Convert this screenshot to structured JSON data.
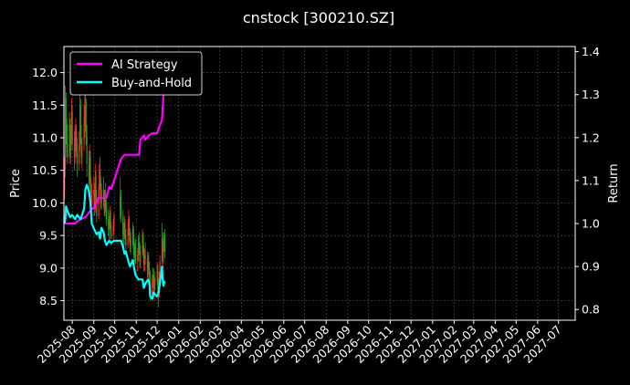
{
  "chart_data": {
    "type": "line",
    "title": "cnstock [300210.SZ]",
    "xlabel": "",
    "ylabel": "Price",
    "ylabel_right": "Return",
    "x_range": [
      "2025-07-20",
      "2027-07-25"
    ],
    "ylim_left": [
      8.2,
      12.4
    ],
    "ylim_right": [
      0.775,
      1.412
    ],
    "x_ticks": [
      "2025-08",
      "2025-09",
      "2025-10",
      "2025-11",
      "2025-12",
      "2026-01",
      "2026-02",
      "2026-03",
      "2026-04",
      "2026-05",
      "2026-06",
      "2026-07",
      "2026-08",
      "2026-09",
      "2026-10",
      "2026-11",
      "2026-12",
      "2027-01",
      "2027-02",
      "2027-03",
      "2027-04",
      "2027-05",
      "2027-06",
      "2027-07"
    ],
    "y_ticks_left": [
      "8.5",
      "9.0",
      "9.5",
      "10.0",
      "10.5",
      "11.0",
      "11.5",
      "12.0"
    ],
    "y_ticks_right": [
      "0.8",
      "0.9",
      "1.0",
      "1.1",
      "1.2",
      "1.3",
      "1.4"
    ],
    "grid": true,
    "legend_position": "top-left",
    "candle_up_color": "#ff2a2a",
    "candle_down_color": "#1fa81f",
    "candles": [
      [
        "2025-07-21",
        10.2,
        10.7,
        10.05,
        10.5
      ],
      [
        "2025-07-22",
        10.5,
        11.8,
        10.4,
        11.6
      ],
      [
        "2025-07-23",
        11.6,
        11.7,
        10.9,
        11.0
      ],
      [
        "2025-07-24",
        11.0,
        11.3,
        10.7,
        10.9
      ],
      [
        "2025-07-25",
        10.9,
        11.2,
        10.6,
        10.7
      ],
      [
        "2025-07-28",
        10.7,
        11.4,
        10.6,
        11.2
      ],
      [
        "2025-07-29",
        11.2,
        11.3,
        10.7,
        10.8
      ],
      [
        "2025-07-30",
        10.8,
        11.2,
        10.6,
        11.0
      ],
      [
        "2025-07-31",
        11.0,
        11.6,
        10.9,
        11.4
      ],
      [
        "2025-08-01",
        11.4,
        11.5,
        10.8,
        10.9
      ],
      [
        "2025-08-04",
        10.9,
        11.1,
        10.5,
        10.7
      ],
      [
        "2025-08-05",
        10.7,
        11.2,
        10.6,
        11.0
      ],
      [
        "2025-08-06",
        11.0,
        11.3,
        10.8,
        11.1
      ],
      [
        "2025-08-07",
        11.1,
        11.2,
        10.7,
        10.8
      ],
      [
        "2025-08-08",
        10.8,
        11.0,
        10.4,
        10.6
      ],
      [
        "2025-08-11",
        10.6,
        11.1,
        10.5,
        10.9
      ],
      [
        "2025-08-12",
        10.9,
        11.8,
        10.8,
        11.5
      ],
      [
        "2025-08-13",
        11.5,
        11.6,
        10.9,
        11.0
      ],
      [
        "2025-08-14",
        11.0,
        11.2,
        10.6,
        10.7
      ],
      [
        "2025-08-15",
        10.7,
        11.0,
        10.5,
        10.9
      ],
      [
        "2025-08-18",
        10.9,
        11.5,
        10.8,
        11.3
      ],
      [
        "2025-08-19",
        11.3,
        11.7,
        11.0,
        11.5
      ],
      [
        "2025-08-20",
        11.5,
        11.8,
        11.1,
        11.2
      ],
      [
        "2025-08-21",
        11.2,
        11.6,
        10.9,
        11.0
      ],
      [
        "2025-08-22",
        11.0,
        11.2,
        10.4,
        10.6
      ],
      [
        "2025-08-25",
        10.6,
        10.8,
        10.2,
        10.4
      ],
      [
        "2025-08-26",
        10.4,
        10.9,
        10.3,
        10.7
      ],
      [
        "2025-08-27",
        10.7,
        10.8,
        10.0,
        10.2
      ],
      [
        "2025-08-28",
        10.2,
        10.4,
        9.8,
        10.0
      ],
      [
        "2025-08-29",
        10.0,
        10.3,
        9.85,
        10.1
      ],
      [
        "2025-09-01",
        10.1,
        10.4,
        9.9,
        10.2
      ],
      [
        "2025-09-02",
        10.2,
        10.3,
        9.8,
        9.9
      ],
      [
        "2025-09-03",
        9.9,
        10.6,
        9.85,
        10.4
      ],
      [
        "2025-09-04",
        10.4,
        10.5,
        10.0,
        10.1
      ],
      [
        "2025-09-05",
        10.1,
        10.2,
        9.7,
        9.8
      ],
      [
        "2025-09-08",
        9.8,
        10.3,
        9.75,
        10.2
      ],
      [
        "2025-09-09",
        10.2,
        10.6,
        10.1,
        10.5
      ],
      [
        "2025-09-10",
        10.5,
        10.7,
        10.2,
        10.3
      ],
      [
        "2025-09-11",
        10.3,
        10.4,
        9.9,
        10.0
      ],
      [
        "2025-09-12",
        10.0,
        10.3,
        9.9,
        10.2
      ],
      [
        "2025-09-15",
        10.2,
        10.4,
        9.95,
        10.1
      ],
      [
        "2025-09-16",
        10.1,
        10.2,
        9.8,
        9.9
      ],
      [
        "2025-09-17",
        9.9,
        10.2,
        9.8,
        10.1
      ],
      [
        "2025-09-18",
        10.1,
        10.3,
        9.85,
        9.95
      ],
      [
        "2025-09-19",
        9.95,
        10.05,
        9.65,
        9.75
      ],
      [
        "2025-09-22",
        9.75,
        9.9,
        9.5,
        9.6
      ],
      [
        "2025-09-23",
        9.6,
        9.8,
        9.4,
        9.7
      ],
      [
        "2025-09-24",
        9.7,
        9.95,
        9.6,
        9.85
      ],
      [
        "2025-09-25",
        9.85,
        9.9,
        9.45,
        9.55
      ],
      [
        "2025-09-26",
        9.55,
        9.7,
        9.35,
        9.5
      ],
      [
        "2025-09-29",
        9.5,
        9.75,
        9.4,
        9.65
      ],
      [
        "2025-09-30",
        9.65,
        9.85,
        9.55,
        9.8
      ],
      [
        "2025-10-09",
        9.8,
        10.4,
        9.75,
        10.1
      ],
      [
        "2025-10-10",
        10.1,
        10.2,
        9.7,
        9.8
      ],
      [
        "2025-10-13",
        9.8,
        9.9,
        9.4,
        9.5
      ],
      [
        "2025-10-14",
        9.5,
        9.7,
        9.3,
        9.6
      ],
      [
        "2025-10-15",
        9.6,
        9.8,
        9.45,
        9.7
      ],
      [
        "2025-10-16",
        9.7,
        9.75,
        9.35,
        9.45
      ],
      [
        "2025-10-17",
        9.45,
        9.6,
        9.25,
        9.35
      ],
      [
        "2025-10-20",
        9.35,
        9.7,
        9.3,
        9.6
      ],
      [
        "2025-10-21",
        9.6,
        9.9,
        9.5,
        9.75
      ],
      [
        "2025-10-22",
        9.75,
        9.8,
        9.4,
        9.5
      ],
      [
        "2025-10-23",
        9.5,
        9.6,
        9.25,
        9.35
      ],
      [
        "2025-10-24",
        9.35,
        9.55,
        9.2,
        9.45
      ],
      [
        "2025-10-27",
        9.45,
        9.7,
        9.35,
        9.6
      ],
      [
        "2025-10-28",
        9.6,
        9.65,
        9.2,
        9.3
      ],
      [
        "2025-10-29",
        9.3,
        9.45,
        9.05,
        9.15
      ],
      [
        "2025-10-30",
        9.15,
        9.4,
        9.1,
        9.35
      ],
      [
        "2025-10-31",
        9.35,
        9.45,
        9.05,
        9.1
      ],
      [
        "2025-11-03",
        9.1,
        9.3,
        8.95,
        9.2
      ],
      [
        "2025-11-04",
        9.2,
        9.5,
        9.1,
        9.4
      ],
      [
        "2025-11-05",
        9.4,
        9.55,
        9.2,
        9.3
      ],
      [
        "2025-11-06",
        9.3,
        9.4,
        9.0,
        9.1
      ],
      [
        "2025-11-07",
        9.1,
        9.35,
        9.0,
        9.25
      ],
      [
        "2025-11-10",
        9.25,
        9.6,
        9.2,
        9.5
      ],
      [
        "2025-11-11",
        9.5,
        9.55,
        9.15,
        9.2
      ],
      [
        "2025-11-12",
        9.2,
        9.35,
        8.95,
        9.05
      ],
      [
        "2025-11-13",
        9.05,
        9.3,
        8.95,
        9.2
      ],
      [
        "2025-11-14",
        9.2,
        9.4,
        9.05,
        9.15
      ],
      [
        "2025-11-17",
        9.15,
        9.25,
        8.85,
        8.95
      ],
      [
        "2025-11-18",
        8.95,
        9.2,
        8.85,
        9.1
      ],
      [
        "2025-11-19",
        9.1,
        9.25,
        8.9,
        9.0
      ],
      [
        "2025-11-20",
        9.0,
        9.1,
        8.75,
        8.85
      ],
      [
        "2025-11-21",
        8.85,
        8.95,
        8.5,
        8.6
      ],
      [
        "2025-11-24",
        8.6,
        8.9,
        8.55,
        8.8
      ],
      [
        "2025-11-25",
        8.8,
        9.0,
        8.7,
        8.9
      ],
      [
        "2025-11-26",
        8.9,
        9.0,
        8.6,
        8.7
      ],
      [
        "2025-11-27",
        8.7,
        8.85,
        8.5,
        8.75
      ],
      [
        "2025-11-28",
        8.75,
        8.95,
        8.65,
        8.85
      ],
      [
        "2025-12-01",
        8.85,
        9.1,
        8.75,
        8.95
      ],
      [
        "2025-12-02",
        8.95,
        9.05,
        8.6,
        8.7
      ],
      [
        "2025-12-03",
        8.7,
        8.85,
        8.4,
        8.6
      ],
      [
        "2025-12-04",
        8.6,
        8.95,
        8.55,
        8.85
      ],
      [
        "2025-12-05",
        8.85,
        9.2,
        8.8,
        9.1
      ],
      [
        "2025-12-08",
        9.1,
        9.7,
        9.05,
        9.45
      ],
      [
        "2025-12-09",
        9.45,
        9.55,
        9.1,
        9.2
      ],
      [
        "2025-12-10",
        9.2,
        9.4,
        9.0,
        9.3
      ],
      [
        "2025-12-11",
        9.3,
        9.55,
        9.25,
        9.5
      ],
      [
        "2025-12-12",
        9.5,
        9.6,
        9.15,
        9.25
      ]
    ],
    "series": [
      {
        "name": "AI Strategy",
        "color": "#ff00ff",
        "points": [
          [
            "2025-07-21",
            1.0
          ],
          [
            "2025-07-24",
            1.0
          ],
          [
            "2025-08-05",
            1.0
          ],
          [
            "2025-08-08",
            1.005
          ],
          [
            "2025-08-13",
            1.01
          ],
          [
            "2025-08-20",
            1.015
          ],
          [
            "2025-08-27",
            1.03
          ],
          [
            "2025-09-03",
            1.04
          ],
          [
            "2025-09-08",
            1.06
          ],
          [
            "2025-09-15",
            1.06
          ],
          [
            "2025-09-19",
            1.06
          ],
          [
            "2025-09-23",
            1.085
          ],
          [
            "2025-09-26",
            1.08
          ],
          [
            "2025-09-30",
            1.1
          ],
          [
            "2025-10-10",
            1.15
          ],
          [
            "2025-10-15",
            1.16
          ],
          [
            "2025-10-22",
            1.16
          ],
          [
            "2025-10-31",
            1.16
          ],
          [
            "2025-11-05",
            1.16
          ],
          [
            "2025-11-07",
            1.195
          ],
          [
            "2025-11-12",
            1.205
          ],
          [
            "2025-11-14",
            1.195
          ],
          [
            "2025-11-19",
            1.205
          ],
          [
            "2025-11-24",
            1.21
          ],
          [
            "2025-12-01",
            1.21
          ],
          [
            "2025-12-04",
            1.225
          ],
          [
            "2025-12-08",
            1.24
          ],
          [
            "2025-12-10",
            1.3
          ],
          [
            "2025-12-12",
            1.34
          ]
        ]
      },
      {
        "name": "Buy-and-Hold",
        "color": "#00ffff",
        "points": [
          [
            "2025-07-21",
            1.0
          ],
          [
            "2025-07-22",
            1.01
          ],
          [
            "2025-07-23",
            1.04
          ],
          [
            "2025-07-25",
            1.03
          ],
          [
            "2025-07-29",
            1.015
          ],
          [
            "2025-08-01",
            1.02
          ],
          [
            "2025-08-05",
            1.01
          ],
          [
            "2025-08-08",
            1.02
          ],
          [
            "2025-08-13",
            1.01
          ],
          [
            "2025-08-18",
            1.035
          ],
          [
            "2025-08-20",
            1.08
          ],
          [
            "2025-08-22",
            1.09
          ],
          [
            "2025-08-25",
            1.075
          ],
          [
            "2025-08-27",
            1.05
          ],
          [
            "2025-08-29",
            1.0
          ],
          [
            "2025-09-02",
            0.985
          ],
          [
            "2025-09-05",
            0.975
          ],
          [
            "2025-09-08",
            0.98
          ],
          [
            "2025-09-10",
            0.965
          ],
          [
            "2025-09-12",
            0.99
          ],
          [
            "2025-09-15",
            0.98
          ],
          [
            "2025-09-17",
            0.96
          ],
          [
            "2025-09-19",
            0.95
          ],
          [
            "2025-09-23",
            0.96
          ],
          [
            "2025-09-26",
            0.955
          ],
          [
            "2025-09-30",
            0.96
          ],
          [
            "2025-10-10",
            0.96
          ],
          [
            "2025-10-13",
            0.945
          ],
          [
            "2025-10-15",
            0.93
          ],
          [
            "2025-10-17",
            0.935
          ],
          [
            "2025-10-21",
            0.91
          ],
          [
            "2025-10-23",
            0.9
          ],
          [
            "2025-10-27",
            0.915
          ],
          [
            "2025-10-29",
            0.895
          ],
          [
            "2025-10-31",
            0.88
          ],
          [
            "2025-11-04",
            0.87
          ],
          [
            "2025-11-06",
            0.87
          ],
          [
            "2025-11-10",
            0.87
          ],
          [
            "2025-11-12",
            0.85
          ],
          [
            "2025-11-14",
            0.86
          ],
          [
            "2025-11-18",
            0.87
          ],
          [
            "2025-11-20",
            0.86
          ],
          [
            "2025-11-21",
            0.83
          ],
          [
            "2025-11-24",
            0.825
          ],
          [
            "2025-11-26",
            0.84
          ],
          [
            "2025-11-28",
            0.835
          ],
          [
            "2025-12-01",
            0.83
          ],
          [
            "2025-12-03",
            0.84
          ],
          [
            "2025-12-05",
            0.86
          ],
          [
            "2025-12-08",
            0.9
          ],
          [
            "2025-12-09",
            0.87
          ],
          [
            "2025-12-10",
            0.855
          ],
          [
            "2025-12-11",
            0.865
          ],
          [
            "2025-12-12",
            0.86
          ]
        ]
      }
    ]
  }
}
